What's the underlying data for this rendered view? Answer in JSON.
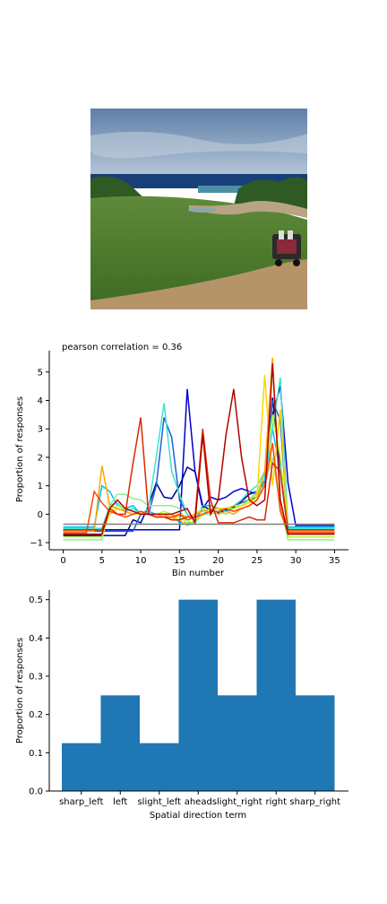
{
  "photo": {
    "subject": "golf course fairway with ocean view and golf cart"
  },
  "chart_data": [
    {
      "type": "line",
      "title": "pearson correlation = 0.36",
      "xlabel": "Bin number",
      "ylabel": "Proportion of responses",
      "xlim": [
        -1.8,
        36.8
      ],
      "ylim": [
        -1.25,
        5.75
      ],
      "xticks": [
        0,
        5,
        10,
        15,
        20,
        25,
        30,
        35
      ],
      "yticks": [
        -1,
        0,
        1,
        2,
        3,
        4,
        5
      ],
      "grid": false,
      "series": [
        {
          "color": "#00008b",
          "x": [
            0,
            1,
            2,
            3,
            4,
            5,
            6,
            7,
            8,
            9,
            10,
            11,
            12,
            13,
            14,
            15,
            16,
            17,
            18,
            19,
            20,
            21,
            22,
            23,
            24,
            25,
            26,
            27,
            28,
            29,
            30,
            31,
            32,
            33,
            34,
            35
          ],
          "values": [
            -0.75,
            -0.75,
            -0.75,
            -0.75,
            -0.75,
            -0.75,
            -0.75,
            -0.75,
            -0.75,
            -0.2,
            -0.3,
            0.3,
            1.1,
            0.6,
            0.55,
            1.0,
            1.65,
            1.5,
            0.3,
            0.15,
            0.05,
            0.15,
            0.25,
            0.45,
            0.7,
            0.8,
            1.0,
            4.1,
            1.5,
            -0.65,
            -0.65,
            -0.65,
            -0.65,
            -0.65,
            -0.65,
            -0.65
          ]
        },
        {
          "color": "#0000cd",
          "x": [
            0,
            1,
            2,
            3,
            4,
            5,
            6,
            7,
            8,
            9,
            10,
            11,
            12,
            13,
            14,
            15,
            16,
            17,
            18,
            19,
            20,
            21,
            22,
            23,
            24,
            25,
            26,
            27,
            28,
            29,
            30,
            31,
            32,
            33,
            34,
            35
          ],
          "values": [
            -0.55,
            -0.55,
            -0.55,
            -0.55,
            -0.55,
            -0.55,
            -0.55,
            -0.55,
            -0.55,
            -0.55,
            -0.55,
            -0.55,
            -0.55,
            -0.55,
            -0.55,
            -0.55,
            4.4,
            1.5,
            0.2,
            0.6,
            0.5,
            0.6,
            0.8,
            0.9,
            0.8,
            0.7,
            1.5,
            3.5,
            4.5,
            1.1,
            -0.4,
            -0.4,
            -0.4,
            -0.4,
            -0.4,
            -0.4
          ]
        },
        {
          "color": "#1f5fd0",
          "x": [
            0,
            1,
            2,
            3,
            4,
            5,
            6,
            7,
            8,
            9,
            10,
            11,
            12,
            13,
            14,
            15,
            16,
            17,
            18,
            19,
            20,
            21,
            22,
            23,
            24,
            25,
            26,
            27,
            28,
            29,
            30,
            31,
            32,
            33,
            34,
            35
          ],
          "values": [
            -0.6,
            -0.6,
            -0.6,
            -0.6,
            -0.6,
            -0.6,
            -0.6,
            -0.6,
            -0.6,
            -0.6,
            0.0,
            0.0,
            1.0,
            3.4,
            2.7,
            0.5,
            0.0,
            -0.2,
            0.2,
            0.1,
            0.1,
            0.2,
            0.3,
            0.4,
            0.5,
            0.6,
            1.2,
            4.0,
            3.3,
            -0.6,
            -0.6,
            -0.6,
            -0.6,
            -0.6,
            -0.6,
            -0.6
          ]
        },
        {
          "color": "#00bfff",
          "x": [
            0,
            1,
            2,
            3,
            4,
            5,
            6,
            7,
            8,
            9,
            10,
            11,
            12,
            13,
            14,
            15,
            16,
            17,
            18,
            19,
            20,
            21,
            22,
            23,
            24,
            25,
            26,
            27,
            28,
            29,
            30,
            31,
            32,
            33,
            34,
            35
          ],
          "values": [
            -0.45,
            -0.45,
            -0.45,
            -0.45,
            -0.45,
            1.0,
            0.8,
            0.3,
            0.2,
            0.3,
            0.0,
            0.1,
            0.0,
            0.0,
            0.0,
            -0.3,
            -0.3,
            -0.3,
            0.3,
            0.3,
            0.2,
            0.1,
            0.2,
            0.3,
            0.5,
            0.8,
            1.2,
            3.0,
            1.5,
            -0.45,
            -0.45,
            -0.45,
            -0.45,
            -0.45,
            -0.45,
            -0.45
          ]
        },
        {
          "color": "#40e0d0",
          "x": [
            0,
            1,
            2,
            3,
            4,
            5,
            6,
            7,
            8,
            9,
            10,
            11,
            12,
            13,
            14,
            15,
            16,
            17,
            18,
            19,
            20,
            21,
            22,
            23,
            24,
            25,
            26,
            27,
            28,
            29,
            30,
            31,
            32,
            33,
            34,
            35
          ],
          "values": [
            -0.5,
            -0.5,
            -0.5,
            -0.5,
            -0.5,
            -0.5,
            0.3,
            0.4,
            0.1,
            0.2,
            0.0,
            0.2,
            2.0,
            3.9,
            1.5,
            0.7,
            0.0,
            -0.2,
            0.0,
            0.2,
            0.2,
            0.2,
            0.3,
            0.5,
            0.8,
            1.0,
            1.5,
            3.0,
            4.8,
            -0.5,
            -0.5,
            -0.5,
            -0.5,
            -0.5,
            -0.5,
            -0.5
          ]
        },
        {
          "color": "#90ee90",
          "x": [
            0,
            1,
            2,
            3,
            4,
            5,
            6,
            7,
            8,
            9,
            10,
            11,
            12,
            13,
            14,
            15,
            16,
            17,
            18,
            19,
            20,
            21,
            22,
            23,
            24,
            25,
            26,
            27,
            28,
            29,
            30,
            31,
            32,
            33,
            34,
            35
          ],
          "values": [
            -0.9,
            -0.9,
            -0.9,
            -0.9,
            -0.9,
            -0.9,
            0.3,
            0.7,
            0.7,
            0.55,
            0.5,
            0.3,
            0.3,
            0.3,
            0.3,
            0.2,
            -0.4,
            -0.3,
            0.0,
            0.0,
            0.1,
            0.0,
            0.2,
            0.3,
            0.5,
            0.8,
            1.0,
            2.0,
            0.3,
            -0.9,
            -0.9,
            -0.9,
            -0.9,
            -0.9,
            -0.9,
            -0.9
          ]
        },
        {
          "color": "#adff2f",
          "x": [
            0,
            1,
            2,
            3,
            4,
            5,
            6,
            7,
            8,
            9,
            10,
            11,
            12,
            13,
            14,
            15,
            16,
            17,
            18,
            19,
            20,
            21,
            22,
            23,
            24,
            25,
            26,
            27,
            28,
            29,
            30,
            31,
            32,
            33,
            34,
            35
          ],
          "values": [
            -0.8,
            -0.8,
            -0.8,
            -0.8,
            -0.8,
            -0.8,
            0.1,
            0.3,
            0.2,
            0.1,
            0.0,
            0.0,
            0.0,
            0.1,
            0.0,
            -0.1,
            -0.3,
            0.0,
            0.2,
            0.1,
            0.1,
            0.2,
            0.2,
            0.3,
            0.5,
            0.7,
            1.5,
            3.5,
            2.0,
            -0.8,
            -0.8,
            -0.8,
            -0.8,
            -0.8,
            -0.8,
            -0.8
          ]
        },
        {
          "color": "#ffd700",
          "x": [
            0,
            1,
            2,
            3,
            4,
            5,
            6,
            7,
            8,
            9,
            10,
            11,
            12,
            13,
            14,
            15,
            16,
            17,
            18,
            19,
            20,
            21,
            22,
            23,
            24,
            25,
            26,
            27,
            28,
            29,
            30,
            31,
            32,
            33,
            34,
            35
          ],
          "values": [
            -0.7,
            -0.7,
            -0.7,
            -0.7,
            -0.7,
            -0.7,
            0.0,
            0.2,
            0.1,
            0.0,
            0.0,
            0.0,
            0.0,
            -0.1,
            -0.1,
            -0.2,
            -0.4,
            -0.2,
            0.0,
            0.1,
            0.2,
            0.2,
            0.3,
            0.3,
            0.4,
            0.6,
            4.9,
            1.0,
            3.7,
            -0.7,
            -0.7,
            -0.7,
            -0.7,
            -0.7,
            -0.7,
            -0.7
          ]
        },
        {
          "color": "#ffa500",
          "x": [
            0,
            1,
            2,
            3,
            4,
            5,
            6,
            7,
            8,
            9,
            10,
            11,
            12,
            13,
            14,
            15,
            16,
            17,
            18,
            19,
            20,
            21,
            22,
            23,
            24,
            25,
            26,
            27,
            28,
            29,
            30,
            31,
            32,
            33,
            34,
            35
          ],
          "values": [
            -0.6,
            -0.6,
            -0.6,
            -0.6,
            -0.6,
            1.7,
            0.3,
            0.2,
            0.1,
            0.0,
            0.1,
            0.0,
            0.0,
            0.0,
            -0.2,
            0.0,
            -0.1,
            0.0,
            0.1,
            0.2,
            0.0,
            0.1,
            0.0,
            0.2,
            0.3,
            0.5,
            1.5,
            5.5,
            0.2,
            -0.6,
            -0.6,
            -0.6,
            -0.6,
            -0.6,
            -0.6,
            -0.6
          ]
        },
        {
          "color": "#ff4500",
          "x": [
            0,
            1,
            2,
            3,
            4,
            5,
            6,
            7,
            8,
            9,
            10,
            11,
            12,
            13,
            14,
            15,
            16,
            17,
            18,
            19,
            20,
            21,
            22,
            23,
            24,
            25,
            26,
            27,
            28,
            29,
            30,
            31,
            32,
            33,
            34,
            35
          ],
          "values": [
            -0.65,
            -0.65,
            -0.65,
            -0.65,
            0.8,
            0.4,
            0.1,
            0.0,
            -0.1,
            0.0,
            0.1,
            0.0,
            -0.1,
            -0.1,
            -0.1,
            0.0,
            -0.2,
            -0.1,
            0.0,
            0.1,
            0.1,
            0.2,
            0.1,
            0.2,
            0.3,
            0.5,
            1.0,
            2.5,
            0.1,
            -0.65,
            -0.65,
            -0.65,
            -0.65,
            -0.65,
            -0.65,
            -0.65
          ]
        },
        {
          "color": "#dc2800",
          "x": [
            0,
            1,
            2,
            3,
            4,
            5,
            6,
            7,
            8,
            9,
            10,
            11,
            12,
            13,
            14,
            15,
            16,
            17,
            18,
            19,
            20,
            21,
            22,
            23,
            24,
            25,
            26,
            27,
            28,
            29,
            30,
            31,
            32,
            33,
            34,
            35
          ],
          "values": [
            -0.55,
            -0.55,
            -0.55,
            -0.55,
            -0.55,
            -0.55,
            0.2,
            0.0,
            0.0,
            1.8,
            3.4,
            0.0,
            -0.1,
            -0.1,
            -0.2,
            -0.2,
            -0.1,
            -0.1,
            3.0,
            0.5,
            -0.3,
            -0.3,
            -0.3,
            -0.2,
            -0.1,
            -0.2,
            -0.2,
            1.8,
            1.5,
            -0.55,
            -0.55,
            -0.55,
            -0.55,
            -0.55,
            -0.55,
            -0.55
          ]
        },
        {
          "color": "#b40000",
          "x": [
            0,
            1,
            2,
            3,
            4,
            5,
            6,
            7,
            8,
            9,
            10,
            11,
            12,
            13,
            14,
            15,
            16,
            17,
            18,
            19,
            20,
            21,
            22,
            23,
            24,
            25,
            26,
            27,
            28,
            29,
            30,
            31,
            32,
            33,
            34,
            35
          ],
          "values": [
            -0.7,
            -0.7,
            -0.7,
            -0.7,
            -0.7,
            -0.7,
            0.2,
            0.5,
            0.2,
            0.1,
            0.0,
            0.0,
            0.0,
            0.0,
            0.0,
            0.1,
            0.2,
            -0.3,
            2.8,
            0.0,
            0.5,
            2.8,
            4.4,
            2.0,
            0.5,
            0.3,
            0.5,
            5.3,
            0.5,
            -0.7,
            -0.7,
            -0.7,
            -0.7,
            -0.7,
            -0.7,
            -0.7
          ]
        },
        {
          "color": "#808080",
          "x": [
            0,
            1,
            2,
            3,
            4,
            5,
            6,
            7,
            8,
            9,
            10,
            11,
            12,
            13,
            14,
            15,
            16,
            17,
            18,
            19,
            20,
            21,
            22,
            23,
            24,
            25,
            26,
            27,
            28,
            29,
            30,
            31,
            32,
            33,
            34,
            35
          ],
          "values": [
            -0.35,
            -0.35,
            -0.35,
            -0.35,
            -0.35,
            -0.35,
            -0.35,
            -0.35,
            -0.35,
            -0.35,
            -0.35,
            -0.35,
            -0.35,
            -0.35,
            -0.35,
            -0.35,
            -0.35,
            -0.35,
            -0.35,
            -0.35,
            -0.35,
            -0.35,
            -0.35,
            -0.35,
            -0.35,
            -0.35,
            -0.35,
            -0.35,
            -0.35,
            -0.35,
            -0.35,
            -0.35,
            -0.35,
            -0.35,
            -0.35,
            -0.35
          ]
        }
      ]
    },
    {
      "type": "bar",
      "xlabel": "Spatial direction term",
      "ylabel": "Proportion of responses",
      "categories": [
        "sharp_left",
        "left",
        "slight_left",
        "ahead",
        "slight_right",
        "right",
        "sharp_right"
      ],
      "values": [
        0.125,
        0.25,
        0.125,
        0.5,
        0.25,
        0.5,
        0.25
      ],
      "ylim": [
        0,
        0.525
      ],
      "yticks": [
        "0.0",
        "0.1",
        "0.2",
        "0.3",
        "0.4",
        "0.5"
      ],
      "bar_color": "#1f77b4",
      "grid": false
    }
  ]
}
